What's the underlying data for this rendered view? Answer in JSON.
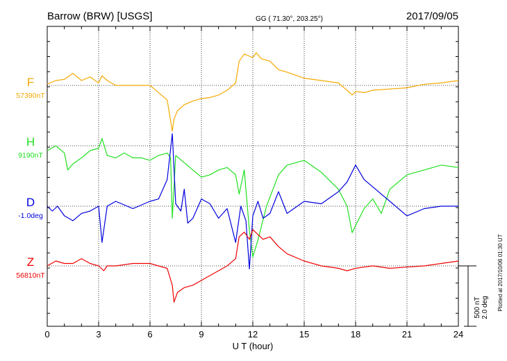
{
  "header": {
    "station": "Barrow (BRW)  [USGS]",
    "coords": "GG ( 71.30°, 203.25°)",
    "date": "2017/09/05"
  },
  "plotted_note": "Plotted at 2017/10/06 01:30 UT",
  "scale_bar": {
    "nt": "500 nT",
    "deg": "2.0 deg"
  },
  "colors": {
    "F": "#f5a800",
    "H": "#1fe01f",
    "D": "#0000dd",
    "Z": "#ee0000"
  },
  "chart_data": {
    "type": "line",
    "title": "Barrow (BRW)  [USGS]",
    "xlabel": "U T (hour)",
    "xlim": [
      0,
      24
    ],
    "xticks": [
      "0",
      "3",
      "6",
      "9",
      "12",
      "15",
      "18",
      "21",
      "24"
    ],
    "grid": true,
    "series": [
      {
        "name": "F",
        "baseline_label": "57390nT",
        "color": "#f5a800",
        "x": [
          0,
          0.5,
          1,
          1.5,
          2,
          2.5,
          3,
          3.2,
          3.5,
          4,
          5,
          6,
          6.5,
          7,
          7.3,
          7.4,
          7.6,
          8,
          8.5,
          9,
          9.5,
          10,
          10.5,
          11,
          11.2,
          11.5,
          12,
          12.2,
          12.5,
          13,
          13.5,
          14,
          15,
          16,
          17,
          17.5,
          17.8,
          18,
          18.5,
          19,
          20,
          21,
          22,
          23,
          24
        ],
        "values": [
          10,
          40,
          50,
          100,
          40,
          70,
          20,
          80,
          40,
          0,
          0,
          0,
          -60,
          -120,
          -380,
          -280,
          -210,
          -160,
          -130,
          -110,
          -100,
          -80,
          -40,
          20,
          200,
          260,
          230,
          270,
          220,
          200,
          130,
          110,
          60,
          40,
          20,
          -40,
          -80,
          -50,
          -60,
          -40,
          -30,
          -20,
          10,
          20,
          40
        ]
      },
      {
        "name": "H",
        "baseline_label": "9190nT",
        "color": "#1fe01f",
        "x": [
          0,
          0.5,
          1,
          1.2,
          1.5,
          2,
          2.5,
          3,
          3.2,
          3.5,
          4,
          4.5,
          5,
          5.5,
          6,
          6.5,
          7,
          7.2,
          7.3,
          7.5,
          8,
          8.5,
          9,
          9.5,
          10,
          10.5,
          11,
          11.2,
          11.5,
          11.8,
          12,
          12.3,
          12.8,
          13.5,
          14,
          15,
          16,
          17,
          17.5,
          17.8,
          18,
          18.5,
          19,
          19.5,
          20,
          21,
          22,
          23,
          24
        ],
        "values": [
          -40,
          0,
          -60,
          -200,
          -150,
          -100,
          -40,
          -20,
          60,
          -80,
          -100,
          -60,
          -100,
          -100,
          -120,
          -80,
          -60,
          -100,
          -600,
          -80,
          -140,
          -200,
          -260,
          -240,
          -200,
          -180,
          -240,
          -400,
          -200,
          -700,
          -920,
          -780,
          -500,
          -240,
          -160,
          -120,
          -220,
          -360,
          -500,
          -720,
          -660,
          -520,
          -440,
          -560,
          -360,
          -240,
          -200,
          -160,
          -180
        ]
      },
      {
        "name": "D",
        "baseline_label": "-1.0deg",
        "color": "#0000dd",
        "x": [
          0,
          0.3,
          0.6,
          1,
          1.5,
          2,
          2.5,
          3,
          3.2,
          3.5,
          4,
          5,
          6,
          6.5,
          7,
          7.3,
          7.5,
          7.8,
          8,
          8.2,
          8.5,
          9,
          9.5,
          10,
          10.5,
          11,
          11.3,
          11.6,
          11.8,
          12,
          12.3,
          12.6,
          13,
          13.5,
          14,
          15,
          16,
          17,
          17.5,
          18,
          18.5,
          19,
          20,
          21,
          22,
          23,
          24
        ],
        "values": [
          0,
          -40,
          -0.1,
          -80,
          -120,
          -60,
          -40,
          0,
          -300,
          0,
          40,
          -20,
          40,
          60,
          220,
          600,
          20,
          -40,
          140,
          -140,
          -100,
          60,
          20,
          -100,
          -20,
          -300,
          0,
          -120,
          -520,
          -80,
          40,
          -100,
          -60,
          120,
          -60,
          40,
          20,
          120,
          200,
          340,
          220,
          160,
          40,
          -80,
          -20,
          0,
          0
        ]
      },
      {
        "name": "Z",
        "baseline_label": "56810nT",
        "color": "#ee0000",
        "x": [
          0,
          0.5,
          1,
          1.5,
          2,
          2.5,
          3,
          3.3,
          3.5,
          4,
          5,
          6,
          6.5,
          7,
          7.3,
          7.4,
          7.6,
          8,
          8.5,
          9,
          9.5,
          10,
          10.5,
          11,
          11.2,
          11.5,
          11.8,
          12,
          12.3,
          12.6,
          13,
          13.5,
          14,
          15,
          16,
          17,
          17.5,
          18,
          18.5,
          19,
          20,
          21,
          22,
          23,
          24
        ],
        "values": [
          0,
          40,
          20,
          20,
          60,
          20,
          0,
          -40,
          0,
          0,
          20,
          20,
          0,
          -20,
          -160,
          -300,
          -220,
          -180,
          -160,
          -120,
          -80,
          -40,
          0,
          60,
          240,
          280,
          220,
          300,
          260,
          220,
          240,
          160,
          100,
          40,
          0,
          -20,
          -40,
          -20,
          -10,
          0,
          -20,
          -10,
          0,
          20,
          40
        ]
      }
    ]
  }
}
